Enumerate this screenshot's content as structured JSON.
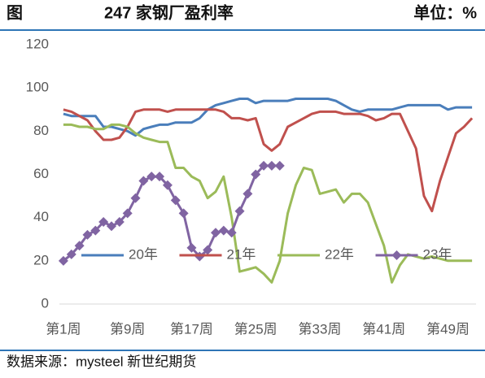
{
  "chart_data": {
    "type": "line",
    "figure_label": "图",
    "title": "247 家钢厂盈利率",
    "unit": "单位：%",
    "source": "数据来源：mysteel 新世纪期货",
    "categories": [
      "第1周",
      null,
      null,
      null,
      null,
      null,
      null,
      null,
      "第9周",
      null,
      null,
      null,
      null,
      null,
      null,
      null,
      "第17周",
      null,
      null,
      null,
      null,
      null,
      null,
      null,
      "第25周",
      null,
      null,
      null,
      null,
      null,
      null,
      null,
      "第33周",
      null,
      null,
      null,
      null,
      null,
      null,
      null,
      "第41周",
      null,
      null,
      null,
      null,
      null,
      null,
      null,
      "第49周",
      null,
      null,
      null
    ],
    "ylim": [
      0,
      120
    ],
    "yticks": [
      0,
      20,
      40,
      60,
      80,
      100,
      120
    ],
    "grid": false,
    "legend": "bottom",
    "series": [
      {
        "name": "20年",
        "color": "#4a7ebb",
        "values": [
          88,
          87,
          87,
          87,
          87,
          82,
          82,
          81,
          80,
          78,
          81,
          82,
          83,
          83,
          84,
          84,
          84,
          86,
          90,
          92,
          93,
          94,
          95,
          95,
          93,
          94,
          94,
          94,
          94,
          95,
          95,
          95,
          95,
          95,
          94,
          92,
          90,
          89,
          90,
          90,
          90,
          90,
          91,
          92,
          92,
          92,
          92,
          92,
          90,
          91,
          91,
          91
        ]
      },
      {
        "name": "21年",
        "color": "#c0504d",
        "values": [
          90,
          89,
          87,
          85,
          80,
          76,
          76,
          77,
          82,
          89,
          90,
          90,
          90,
          89,
          90,
          90,
          90,
          90,
          90,
          90,
          89,
          86,
          86,
          85,
          86,
          74,
          71,
          74,
          82,
          84,
          86,
          88,
          89,
          89,
          89,
          88,
          88,
          88,
          87,
          85,
          86,
          88,
          88,
          80,
          72,
          50,
          43,
          57,
          68,
          79,
          82,
          86
        ]
      },
      {
        "name": "22年",
        "color": "#9bbb59",
        "values": [
          83,
          83,
          82,
          82,
          81,
          81,
          83,
          83,
          82,
          79,
          77,
          76,
          75,
          75,
          63,
          63,
          59,
          57,
          49,
          52,
          59,
          40,
          15,
          16,
          17,
          14,
          10,
          20,
          42,
          55,
          63,
          62,
          51,
          52,
          53,
          47,
          51,
          51,
          47,
          37,
          27,
          10,
          18,
          23,
          22,
          21,
          22,
          21,
          20,
          20,
          20,
          20
        ]
      },
      {
        "name": "23年",
        "color": "#8064a2",
        "marker": "diamond",
        "values": [
          20,
          23,
          27,
          32,
          34,
          38,
          36,
          38,
          42,
          49,
          57,
          59,
          59,
          55,
          48,
          42,
          26,
          22,
          25,
          33,
          34,
          33,
          43,
          51,
          60,
          64,
          64,
          64,
          null,
          null,
          null,
          null,
          null,
          null,
          null,
          null,
          null,
          null,
          null,
          null,
          null,
          null,
          null,
          null,
          null,
          null,
          null,
          null,
          null,
          null,
          null,
          null
        ]
      }
    ]
  }
}
